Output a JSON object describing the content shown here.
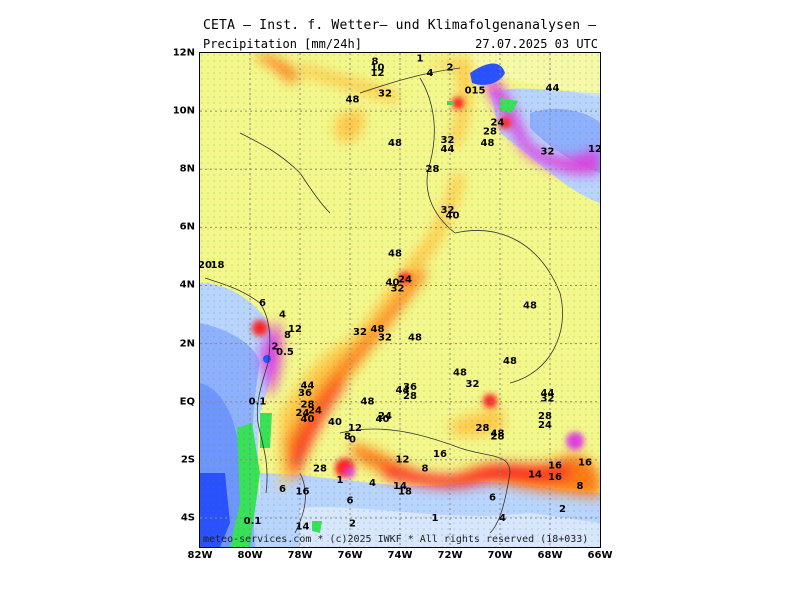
{
  "header": {
    "title": "CETA — Inst. f. Wetter— und Klimafolgenanalysen —",
    "variable": "Precipitation [mm/24h]",
    "datetime": "27.07.2025 03 UTC"
  },
  "footer": {
    "credit": "meteo-services.com * (c)2025 IWKF * All rights reserved (18+033)"
  },
  "axes": {
    "lat_labels": [
      "12N",
      "10N",
      "8N",
      "6N",
      "4N",
      "2N",
      "EQ",
      "2S",
      "4S"
    ],
    "lon_labels": [
      "82W",
      "80W",
      "78W",
      "76W",
      "74W",
      "72W",
      "70W",
      "68W",
      "66W"
    ]
  },
  "colors": {
    "low": "#f4f78c",
    "moderate": "#ffc84a",
    "heavy": "#ff7a18",
    "very_heavy": "#ff2020",
    "extreme": "#e040e0",
    "ocean_light": "#b9d4ff",
    "ocean_mid": "#8fb0ff",
    "ocean_dark": "#6f96ff",
    "green": "#39e05a",
    "dark_blue": "#2a50ff"
  },
  "map_labels": [
    {
      "t": "20",
      "lon": -81.8,
      "lat": 4.6
    },
    {
      "t": "18",
      "lon": -81.3,
      "lat": 4.6
    },
    {
      "t": "6",
      "lon": -79.5,
      "lat": 3.3
    },
    {
      "t": "4",
      "lon": -78.7,
      "lat": 2.9
    },
    {
      "t": "12",
      "lon": -78.2,
      "lat": 2.4
    },
    {
      "t": "8",
      "lon": -78.5,
      "lat": 2.2
    },
    {
      "t": "2",
      "lon": -79,
      "lat": 1.8
    },
    {
      "t": "0.5",
      "lon": -78.6,
      "lat": 1.6
    },
    {
      "t": "0.1",
      "lon": -79.7,
      "lat": -0.1
    },
    {
      "t": "44",
      "lon": -77.7,
      "lat": 0.45
    },
    {
      "t": "36",
      "lon": -77.8,
      "lat": 0.2
    },
    {
      "t": "28",
      "lon": -77.7,
      "lat": -0.2
    },
    {
      "t": "24",
      "lon": -77.9,
      "lat": -0.5
    },
    {
      "t": "40",
      "lon": -77.7,
      "lat": -0.7
    },
    {
      "t": "24",
      "lon": -77.4,
      "lat": -0.4
    },
    {
      "t": "40",
      "lon": -76.6,
      "lat": -0.8
    },
    {
      "t": "12",
      "lon": -75.8,
      "lat": -1.0
    },
    {
      "t": "8",
      "lon": -76.1,
      "lat": -1.3
    },
    {
      "t": "0",
      "lon": -75.9,
      "lat": -1.4
    },
    {
      "t": "28",
      "lon": -77.2,
      "lat": -2.4
    },
    {
      "t": "1",
      "lon": -76.4,
      "lat": -2.8
    },
    {
      "t": "6",
      "lon": -78.7,
      "lat": -3.1
    },
    {
      "t": "16",
      "lon": -77.9,
      "lat": -3.2
    },
    {
      "t": "6",
      "lon": -76,
      "lat": -3.5
    },
    {
      "t": "4",
      "lon": -75.1,
      "lat": -2.9
    },
    {
      "t": "14",
      "lon": -77.9,
      "lat": -4.4
    },
    {
      "t": "2",
      "lon": -75.9,
      "lat": -4.3
    },
    {
      "t": "0.1",
      "lon": -79.9,
      "lat": -4.2
    },
    {
      "t": "48",
      "lon": -75.3,
      "lat": -0.1
    },
    {
      "t": "24",
      "lon": -74.6,
      "lat": -0.6
    },
    {
      "t": "40",
      "lon": -74.7,
      "lat": -0.7
    },
    {
      "t": "12",
      "lon": -73.9,
      "lat": -2.1
    },
    {
      "t": "8",
      "lon": -73,
      "lat": -2.4
    },
    {
      "t": "16",
      "lon": -72.4,
      "lat": -1.9
    },
    {
      "t": "14",
      "lon": -74,
      "lat": -3
    },
    {
      "t": "18",
      "lon": -73.8,
      "lat": -3.2
    },
    {
      "t": "1",
      "lon": -72.6,
      "lat": -4.1
    },
    {
      "t": "6",
      "lon": -70.3,
      "lat": -3.4
    },
    {
      "t": "4",
      "lon": -69.9,
      "lat": -4.1
    },
    {
      "t": "2",
      "lon": -67.5,
      "lat": -3.8
    },
    {
      "t": "8",
      "lon": -66.8,
      "lat": -3
    },
    {
      "t": "14",
      "lon": -68.6,
      "lat": -2.6
    },
    {
      "t": "16",
      "lon": -67.8,
      "lat": -2.7
    },
    {
      "t": "16",
      "lon": -67.8,
      "lat": -2.3
    },
    {
      "t": "16",
      "lon": -66.6,
      "lat": -2.2
    },
    {
      "t": "28",
      "lon": -70.7,
      "lat": -1.0
    },
    {
      "t": "48",
      "lon": -70.1,
      "lat": -1.2
    },
    {
      "t": "28",
      "lon": -70.1,
      "lat": -1.3
    },
    {
      "t": "28",
      "lon": -68.2,
      "lat": -0.6
    },
    {
      "t": "24",
      "lon": -68.2,
      "lat": -0.9
    },
    {
      "t": "44",
      "lon": -68.1,
      "lat": 0.2
    },
    {
      "t": "32",
      "lon": -68.1,
      "lat": 0
    },
    {
      "t": "48",
      "lon": -69.6,
      "lat": 1.3
    },
    {
      "t": "48",
      "lon": -71.6,
      "lat": 0.9
    },
    {
      "t": "32",
      "lon": -71.1,
      "lat": 0.5
    },
    {
      "t": "44",
      "lon": -73.9,
      "lat": 0.3
    },
    {
      "t": "36",
      "lon": -73.6,
      "lat": 0.4
    },
    {
      "t": "28",
      "lon": -73.6,
      "lat": 0.1
    },
    {
      "t": "32",
      "lon": -75.6,
      "lat": 2.3
    },
    {
      "t": "48",
      "lon": -74.9,
      "lat": 2.4
    },
    {
      "t": "32",
      "lon": -74.6,
      "lat": 2.1
    },
    {
      "t": "48",
      "lon": -73.4,
      "lat": 2.1
    },
    {
      "t": "48",
      "lon": -74.2,
      "lat": 5
    },
    {
      "t": "40",
      "lon": -74.3,
      "lat": 4
    },
    {
      "t": "24",
      "lon": -73.8,
      "lat": 4.1
    },
    {
      "t": "32",
      "lon": -74.1,
      "lat": 3.8
    },
    {
      "t": "48",
      "lon": -68.8,
      "lat": 3.2
    },
    {
      "t": "32",
      "lon": -72.1,
      "lat": 6.5
    },
    {
      "t": "40",
      "lon": -71.9,
      "lat": 6.3
    },
    {
      "t": "28",
      "lon": -72.7,
      "lat": 7.9
    },
    {
      "t": "32",
      "lon": -72.1,
      "lat": 8.9
    },
    {
      "t": "44",
      "lon": -72.1,
      "lat": 8.6
    },
    {
      "t": "48",
      "lon": -74.2,
      "lat": 8.8
    },
    {
      "t": "48",
      "lon": -70.5,
      "lat": 8.8
    },
    {
      "t": "28",
      "lon": -70.4,
      "lat": 9.2
    },
    {
      "t": "24",
      "lon": -70.1,
      "lat": 9.5
    },
    {
      "t": "32",
      "lon": -68.1,
      "lat": 8.5
    },
    {
      "t": "12",
      "lon": -66.2,
      "lat": 8.6
    },
    {
      "t": "015",
      "lon": -71,
      "lat": 10.6
    },
    {
      "t": "48",
      "lon": -75.9,
      "lat": 10.3
    },
    {
      "t": "32",
      "lon": -74.6,
      "lat": 10.5
    },
    {
      "t": "8",
      "lon": -75,
      "lat": 11.6
    },
    {
      "t": "10",
      "lon": -74.9,
      "lat": 11.4
    },
    {
      "t": "12",
      "lon": -74.9,
      "lat": 11.2
    },
    {
      "t": "1",
      "lon": -73.2,
      "lat": 11.7
    },
    {
      "t": "4",
      "lon": -72.8,
      "lat": 11.2
    },
    {
      "t": "2",
      "lon": -72,
      "lat": 11.4
    },
    {
      "t": "44",
      "lon": -67.9,
      "lat": 10.7
    }
  ]
}
